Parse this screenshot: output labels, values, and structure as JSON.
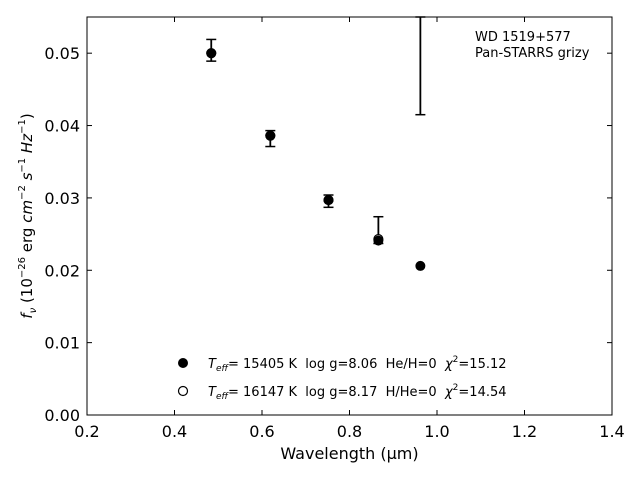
{
  "chart_data": {
    "type": "scatter",
    "xlabel": "Wavelength (μm)",
    "ylabel_parts": {
      "f": "f",
      "nu": "ν",
      "open": " (10",
      "exp1": "−26",
      "erg": " erg ",
      "cm": "cm",
      "exp2": "−2",
      "s": " s",
      "exp3": "−1",
      "hz": " Hz",
      "exp4": "−1",
      "close": ")"
    },
    "xlim": [
      0.2,
      1.4
    ],
    "ylim": [
      0.0,
      0.055
    ],
    "xticks": [
      0.2,
      0.4,
      0.6,
      0.8,
      1.0,
      1.2,
      1.4
    ],
    "xtick_labels": [
      "0.2",
      "0.4",
      "0.6",
      "0.8",
      "1.0",
      "1.2",
      "1.4"
    ],
    "yticks": [
      0.0,
      0.01,
      0.02,
      0.03,
      0.04,
      0.05
    ],
    "ytick_labels": [
      "0.00",
      "0.01",
      "0.02",
      "0.03",
      "0.04",
      "0.05"
    ],
    "annotation": {
      "line1": "WD 1519+577",
      "line2": "Pan-STARRS grizy"
    },
    "observed": {
      "x": [
        0.484,
        0.619,
        0.752,
        0.866,
        0.962
      ],
      "y": [
        0.05,
        0.0385,
        0.0297,
        0.0242,
        null
      ],
      "yerr_low": [
        0.0489,
        0.0371,
        0.0287,
        0.0237,
        0.0415
      ],
      "yerr_high": [
        0.0519,
        0.0393,
        0.0304,
        0.0274,
        0.055
      ]
    },
    "series": [
      {
        "marker": "filled",
        "x": [
          0.484,
          0.619,
          0.752,
          0.866,
          0.962
        ],
        "y": [
          0.05,
          0.0386,
          0.0297,
          0.0241,
          0.0206
        ]
      },
      {
        "marker": "open",
        "x": [
          0.484,
          0.619,
          0.752,
          0.866
        ],
        "y": [
          0.05,
          0.0386,
          0.0297,
          0.0243
        ]
      }
    ],
    "legend": {
      "placement": "lower-center",
      "entries": [
        {
          "marker": "filled",
          "teff_label": "T",
          "teff_sub": "eff",
          "teff_text": "= 15405 K  log g=8.06  He/H=0  ",
          "chi_label": "χ",
          "chi_sup": "2",
          "chi_text": "=15.12"
        },
        {
          "marker": "open",
          "teff_label": "T",
          "teff_sub": "eff",
          "teff_text": "= 16147 K  log g=8.17  H/He=0  ",
          "chi_label": "χ",
          "chi_sup": "2",
          "chi_text": "=14.54"
        }
      ]
    }
  }
}
